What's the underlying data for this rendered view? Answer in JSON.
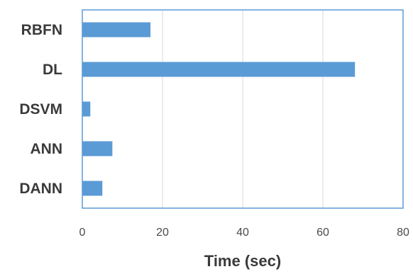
{
  "chart_data": {
    "type": "bar",
    "orientation": "horizontal",
    "categories": [
      "RBFN",
      "DL",
      "DSVM",
      "ANN",
      "DANN"
    ],
    "values": [
      17,
      68,
      2,
      7.5,
      5
    ],
    "xlabel": "Time (sec)",
    "ylabel": "",
    "xlim": [
      0,
      80
    ],
    "xticks": [
      0,
      20,
      40,
      60,
      80
    ],
    "grid": true,
    "bar_color": "#5B9BD5",
    "border_color": "#5B9BD5",
    "grid_color": "#d9d9d9"
  }
}
